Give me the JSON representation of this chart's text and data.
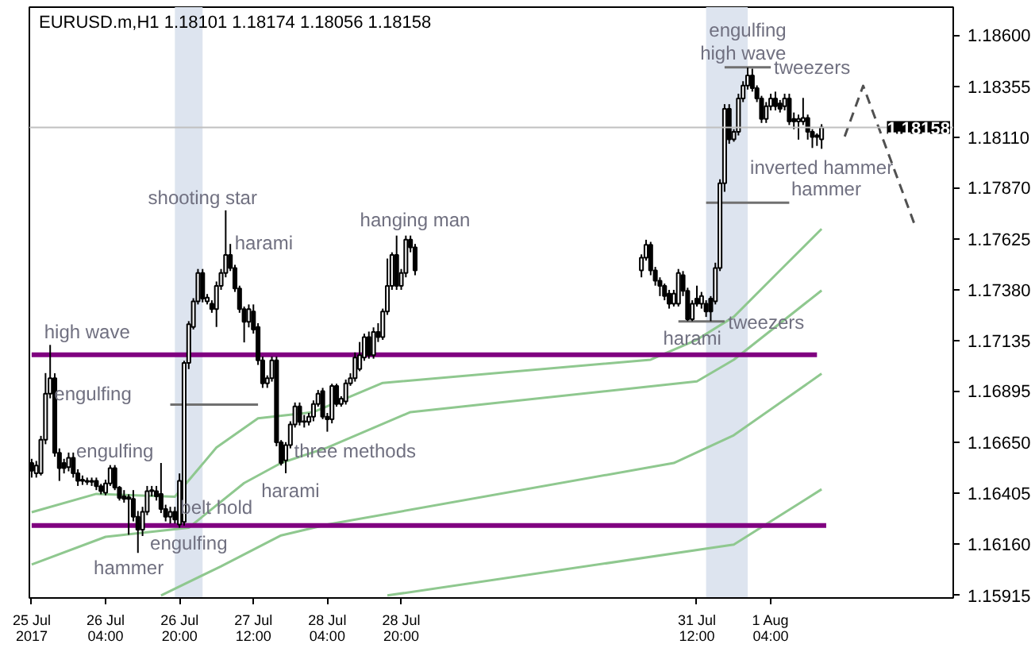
{
  "chart_data": {
    "type": "candlestick",
    "title": "EURUSD.m,H1  1.18101 1.18174 1.18056 1.18158",
    "xlim": [
      "2017-07-25T11:30",
      "2017-08-02T19:30"
    ],
    "ylim": [
      1.15903,
      1.18735
    ],
    "xticks": [
      {
        "value": "2017-07-25T12:00",
        "label": "25 Jul 2017"
      },
      {
        "value": "2017-07-26T04:00",
        "label": "26 Jul 04:00"
      },
      {
        "value": "2017-07-26T20:00",
        "label": "26 Jul 20:00"
      },
      {
        "value": "2017-07-27T12:00",
        "label": "27 Jul 12:00"
      },
      {
        "value": "2017-07-28T04:00",
        "label": "28 Jul 04:00"
      },
      {
        "value": "2017-07-28T20:00",
        "label": "28 Jul 20:00"
      },
      {
        "value": "2017-07-31T12:00",
        "label": "31 Jul 12:00"
      },
      {
        "value": "2017-08-01T04:00",
        "label": "1 Aug 04:00"
      }
    ],
    "yticks": [
      {
        "value": 1.186,
        "label": "1.18600"
      },
      {
        "value": 1.18355,
        "label": "1.18355"
      },
      {
        "value": 1.1811,
        "label": "1.18110"
      },
      {
        "value": 1.1787,
        "label": "1.17870"
      },
      {
        "value": 1.17625,
        "label": "1.17625"
      },
      {
        "value": 1.1738,
        "label": "1.17380"
      },
      {
        "value": 1.17135,
        "label": "1.17135"
      },
      {
        "value": 1.16895,
        "label": "1.16895"
      },
      {
        "value": 1.1665,
        "label": "1.16650"
      },
      {
        "value": 1.16405,
        "label": "1.16405"
      },
      {
        "value": 1.1616,
        "label": "1.16160"
      },
      {
        "value": 1.15915,
        "label": "1.15915"
      }
    ],
    "grid": false,
    "x": [
      "2017-07-25T12:00",
      "2017-07-25T13:00",
      "2017-07-25T14:00",
      "2017-07-25T15:00",
      "2017-07-25T16:00",
      "2017-07-25T17:00",
      "2017-07-25T18:00",
      "2017-07-25T19:00",
      "2017-07-25T20:00",
      "2017-07-25T21:00",
      "2017-07-25T22:00",
      "2017-07-25T23:00",
      "2017-07-26T00:00",
      "2017-07-26T01:00",
      "2017-07-26T02:00",
      "2017-07-26T03:00",
      "2017-07-26T04:00",
      "2017-07-26T05:00",
      "2017-07-26T06:00",
      "2017-07-26T07:00",
      "2017-07-26T08:00",
      "2017-07-26T09:00",
      "2017-07-26T10:00",
      "2017-07-26T11:00",
      "2017-07-26T12:00",
      "2017-07-26T13:00",
      "2017-07-26T14:00",
      "2017-07-26T15:00",
      "2017-07-26T16:00",
      "2017-07-26T17:00",
      "2017-07-26T18:00",
      "2017-07-26T19:00",
      "2017-07-26T20:00",
      "2017-07-26T21:00",
      "2017-07-26T22:00",
      "2017-07-26T23:00",
      "2017-07-27T00:00",
      "2017-07-27T01:00",
      "2017-07-27T02:00",
      "2017-07-27T03:00",
      "2017-07-27T04:00",
      "2017-07-27T05:00",
      "2017-07-27T06:00",
      "2017-07-27T07:00",
      "2017-07-27T08:00",
      "2017-07-27T09:00",
      "2017-07-27T10:00",
      "2017-07-27T11:00",
      "2017-07-27T12:00",
      "2017-07-27T13:00",
      "2017-07-27T14:00",
      "2017-07-27T15:00",
      "2017-07-27T16:00",
      "2017-07-27T17:00",
      "2017-07-27T18:00",
      "2017-07-27T19:00",
      "2017-07-27T20:00",
      "2017-07-27T21:00",
      "2017-07-27T22:00",
      "2017-07-27T23:00",
      "2017-07-28T00:00",
      "2017-07-28T01:00",
      "2017-07-28T02:00",
      "2017-07-28T03:00",
      "2017-07-28T04:00",
      "2017-07-28T05:00",
      "2017-07-28T06:00",
      "2017-07-28T07:00",
      "2017-07-28T08:00",
      "2017-07-28T09:00",
      "2017-07-28T10:00",
      "2017-07-28T11:00",
      "2017-07-28T12:00",
      "2017-07-28T13:00",
      "2017-07-28T14:00",
      "2017-07-28T15:00",
      "2017-07-28T16:00",
      "2017-07-28T17:00",
      "2017-07-28T18:00",
      "2017-07-28T19:00",
      "2017-07-28T20:00",
      "2017-07-28T21:00",
      "2017-07-28T22:00",
      "2017-07-28T23:00",
      "2017-07-31T00:00",
      "2017-07-31T01:00",
      "2017-07-31T02:00",
      "2017-07-31T03:00",
      "2017-07-31T04:00",
      "2017-07-31T05:00",
      "2017-07-31T06:00",
      "2017-07-31T07:00",
      "2017-07-31T08:00",
      "2017-07-31T09:00",
      "2017-07-31T10:00",
      "2017-07-31T11:00",
      "2017-07-31T12:00",
      "2017-07-31T13:00",
      "2017-07-31T14:00",
      "2017-07-31T15:00",
      "2017-07-31T16:00",
      "2017-07-31T17:00",
      "2017-07-31T18:00",
      "2017-07-31T19:00",
      "2017-07-31T20:00",
      "2017-07-31T21:00",
      "2017-07-31T22:00",
      "2017-07-31T23:00",
      "2017-08-01T00:00",
      "2017-08-01T01:00",
      "2017-08-01T02:00",
      "2017-08-01T03:00",
      "2017-08-01T04:00",
      "2017-08-01T05:00",
      "2017-08-01T06:00",
      "2017-08-01T07:00",
      "2017-08-01T08:00",
      "2017-08-01T09:00",
      "2017-08-01T10:00",
      "2017-08-01T11:00",
      "2017-08-01T12:00",
      "2017-08-01T13:00",
      "2017-08-01T14:00",
      "2017-08-01T15:00"
    ],
    "ohlc": [
      [
        1.1655,
        1.1657,
        1.1648,
        1.16513
      ],
      [
        1.16501,
        1.1656,
        1.1648,
        1.16538
      ],
      [
        1.16501,
        1.1668,
        1.1649,
        1.16661
      ],
      [
        1.16661,
        1.16981,
        1.1664,
        1.16882
      ],
      [
        1.16882,
        1.17116,
        1.1686,
        1.16956
      ],
      [
        1.16956,
        1.1698,
        1.1658,
        1.16599
      ],
      [
        1.16599,
        1.1662,
        1.16464,
        1.16525
      ],
      [
        1.1655,
        1.1657,
        1.165,
        1.16525
      ],
      [
        1.1653,
        1.166,
        1.1651,
        1.16575
      ],
      [
        1.16575,
        1.166,
        1.1648,
        1.16501
      ],
      [
        1.16501,
        1.1652,
        1.1644,
        1.16464
      ],
      [
        1.1647,
        1.1649,
        1.16445,
        1.16464
      ],
      [
        1.16464,
        1.1648,
        1.16445,
        1.1646
      ],
      [
        1.1646,
        1.1648,
        1.1644,
        1.16464
      ],
      [
        1.16464,
        1.1648,
        1.1642,
        1.16439
      ],
      [
        1.16439,
        1.1645,
        1.164,
        1.16415
      ],
      [
        1.16407,
        1.1647,
        1.16395,
        1.16452
      ],
      [
        1.16452,
        1.1654,
        1.1644,
        1.16525
      ],
      [
        1.16525,
        1.1654,
        1.1642,
        1.16432
      ],
      [
        1.16432,
        1.1644,
        1.1637,
        1.16383
      ],
      [
        1.1639,
        1.1642,
        1.1636,
        1.16378
      ],
      [
        1.16385,
        1.164,
        1.16206,
        1.16378
      ],
      [
        1.16378,
        1.1642,
        1.1627,
        1.16292
      ],
      [
        1.16292,
        1.1632,
        1.16119,
        1.1623
      ],
      [
        1.1623,
        1.1634,
        1.162,
        1.16316
      ],
      [
        1.16316,
        1.1644,
        1.163,
        1.16415
      ],
      [
        1.16415,
        1.1644,
        1.1639,
        1.1642
      ],
      [
        1.16415,
        1.1644,
        1.1637,
        1.1639
      ],
      [
        1.16402,
        1.1655,
        1.1631,
        1.16329
      ],
      [
        1.16329,
        1.1635,
        1.1627,
        1.16292
      ],
      [
        1.16292,
        1.1634,
        1.1626,
        1.16316
      ],
      [
        1.16316,
        1.1634,
        1.1626,
        1.16279
      ],
      [
        1.16255,
        1.165,
        1.1624,
        1.16464
      ],
      [
        1.16267,
        1.1704,
        1.1625,
        1.1703
      ],
      [
        1.1703,
        1.1723,
        1.17,
        1.17215
      ],
      [
        1.17202,
        1.1734,
        1.1719,
        1.17325
      ],
      [
        1.17325,
        1.1748,
        1.1731,
        1.17461
      ],
      [
        1.17461,
        1.1748,
        1.1732,
        1.17338
      ],
      [
        1.17325,
        1.1736,
        1.1731,
        1.17343
      ],
      [
        1.17313,
        1.1733,
        1.1727,
        1.17288
      ],
      [
        1.17288,
        1.1742,
        1.17202,
        1.17399
      ],
      [
        1.17399,
        1.1748,
        1.1738,
        1.17461
      ],
      [
        1.17461,
        1.17761,
        1.1744,
        1.17547
      ],
      [
        1.17547,
        1.176,
        1.1747,
        1.17485
      ],
      [
        1.17485,
        1.175,
        1.1737,
        1.17387
      ],
      [
        1.17387,
        1.174,
        1.1727,
        1.17288
      ],
      [
        1.17288,
        1.173,
        1.17128,
        1.17227
      ],
      [
        1.17227,
        1.1731,
        1.172,
        1.17288
      ],
      [
        1.17276,
        1.1731,
        1.1717,
        1.1719
      ],
      [
        1.17202,
        1.1722,
        1.1702,
        1.17042
      ],
      [
        1.17042,
        1.1706,
        1.1691,
        1.16932
      ],
      [
        1.16932,
        1.1697,
        1.1691,
        1.16956
      ],
      [
        1.16956,
        1.1706,
        1.1694,
        1.17042
      ],
      [
        1.17042,
        1.1706,
        1.1663,
        1.16649
      ],
      [
        1.16649,
        1.1666,
        1.16538,
        1.1655
      ],
      [
        1.16562,
        1.1665,
        1.16501,
        1.16636
      ],
      [
        1.16636,
        1.1675,
        1.1662,
        1.16735
      ],
      [
        1.16735,
        1.1684,
        1.1672,
        1.16821
      ],
      [
        1.16821,
        1.1684,
        1.1673,
        1.16747
      ],
      [
        1.16747,
        1.1678,
        1.1672,
        1.1675
      ],
      [
        1.16747,
        1.1679,
        1.1673,
        1.16772
      ],
      [
        1.16772,
        1.1685,
        1.1675,
        1.16833
      ],
      [
        1.16833,
        1.169,
        1.1682,
        1.16882
      ],
      [
        1.16895,
        1.1691,
        1.1676,
        1.16772
      ],
      [
        1.16772,
        1.1679,
        1.167,
        1.16759
      ],
      [
        1.16759,
        1.1693,
        1.1674,
        1.16919
      ],
      [
        1.16919,
        1.1693,
        1.1682,
        1.16833
      ],
      [
        1.16833,
        1.1687,
        1.1682,
        1.16858
      ],
      [
        1.16845,
        1.1695,
        1.1683,
        1.16932
      ],
      [
        1.16932,
        1.1698,
        1.1692,
        1.16956
      ],
      [
        1.16956,
        1.1708,
        1.1694,
        1.17055
      ],
      [
        1.17,
        1.1713,
        1.1699,
        1.17067
      ],
      [
        1.17055,
        1.1717,
        1.1704,
        1.17153
      ],
      [
        1.17153,
        1.1718,
        1.1705,
        1.17067
      ],
      [
        1.17067,
        1.172,
        1.1705,
        1.17178
      ],
      [
        1.17178,
        1.1722,
        1.1713,
        1.17153
      ],
      [
        1.17153,
        1.1729,
        1.1714,
        1.17276
      ],
      [
        1.17276,
        1.1753,
        1.1726,
        1.17399
      ],
      [
        1.17399,
        1.1756,
        1.1738,
        1.17547
      ],
      [
        1.17547,
        1.1764,
        1.1738,
        1.17399
      ],
      [
        1.17399,
        1.1748,
        1.1738,
        1.17461
      ],
      [
        1.17461,
        1.1764,
        1.1744,
        1.17621
      ],
      [
        1.17621,
        1.1764,
        1.1756,
        1.17584
      ],
      [
        1.17584,
        1.176,
        1.1745,
        1.17473
      ],
      [
        1.17473,
        1.1755,
        1.1744,
        1.17534
      ],
      [
        1.17534,
        1.1762,
        1.1752,
        1.17596
      ],
      [
        1.17596,
        1.1761,
        1.1745,
        1.17473
      ],
      [
        1.17473,
        1.1749,
        1.174,
        1.17424
      ],
      [
        1.17424,
        1.1744,
        1.1735,
        1.17399
      ],
      [
        1.17399,
        1.1741,
        1.1733,
        1.1735
      ],
      [
        1.17362,
        1.1738,
        1.1729,
        1.17313
      ],
      [
        1.17313,
        1.1738,
        1.173,
        1.17362
      ],
      [
        1.17313,
        1.1748,
        1.173,
        1.17461
      ],
      [
        1.1745,
        1.1747,
        1.1735,
        1.17375
      ],
      [
        1.17375,
        1.1739,
        1.1723,
        1.17239
      ],
      [
        1.17239,
        1.1733,
        1.1723,
        1.17313
      ],
      [
        1.17338,
        1.174,
        1.173,
        1.17313
      ],
      [
        1.17313,
        1.1737,
        1.1729,
        1.1735
      ],
      [
        1.17313,
        1.1733,
        1.1725,
        1.17276
      ],
      [
        1.17338,
        1.1735,
        1.1723,
        1.17276
      ],
      [
        1.17325,
        1.1751,
        1.1731,
        1.17485
      ],
      [
        1.17485,
        1.1791,
        1.1747,
        1.17891
      ],
      [
        1.17891,
        1.1827,
        1.1785,
        1.18248
      ],
      [
        1.18248,
        1.1827,
        1.1808,
        1.18101
      ],
      [
        1.18101,
        1.1815,
        1.1809,
        1.18137
      ],
      [
        1.18137,
        1.1832,
        1.1812,
        1.18297
      ],
      [
        1.18297,
        1.1838,
        1.1828,
        1.18359
      ],
      [
        1.18359,
        1.18445,
        1.1834,
        1.18408
      ],
      [
        1.18408,
        1.1844,
        1.1833,
        1.18347
      ],
      [
        1.18347,
        1.1836,
        1.1828,
        1.18297
      ],
      [
        1.18297,
        1.1831,
        1.1818,
        1.18199
      ],
      [
        1.18199,
        1.1828,
        1.1818,
        1.1826
      ],
      [
        1.1826,
        1.1832,
        1.1824,
        1.18297
      ],
      [
        1.18297,
        1.1833,
        1.1824,
        1.1826
      ],
      [
        1.18273,
        1.1829,
        1.1823,
        1.18248
      ],
      [
        1.1826,
        1.1832,
        1.1824,
        1.18297
      ],
      [
        1.18297,
        1.1832,
        1.1817,
        1.18187
      ],
      [
        1.18199,
        1.1823,
        1.1815,
        1.18187
      ],
      [
        1.18187,
        1.1822,
        1.181,
        1.18199
      ],
      [
        1.18187,
        1.183,
        1.1817,
        1.18204
      ],
      [
        1.18204,
        1.1822,
        1.181,
        1.18137
      ],
      [
        1.18137,
        1.1815,
        1.1806,
        1.18113
      ],
      [
        1.18113,
        1.1813,
        1.1807,
        1.1812
      ],
      [
        1.18101,
        1.18174,
        1.18056,
        1.18158
      ]
    ],
    "series": [
      {
        "type": "line",
        "color": "#8fc88f",
        "x": [
          "2017-07-25T12:00",
          "2017-07-26T02:00",
          "2017-07-26T19:00",
          "2017-07-27T04:00",
          "2017-07-27T13:00",
          "2017-07-28T01:00",
          "2017-07-28T16:00",
          "2017-07-31T02:00",
          "2017-07-31T12:00",
          "2017-07-31T20:00",
          "2017-08-01T06:00",
          "2017-08-01T15:00"
        ],
        "values": [
          1.16314,
          1.16402,
          1.16388,
          1.16624,
          1.16764,
          1.16794,
          1.16934,
          1.17045,
          1.17141,
          1.17251,
          1.17473,
          1.17672
        ]
      },
      {
        "type": "line",
        "color": "#8fc88f",
        "x": [
          "2017-07-25T12:00",
          "2017-07-26T04:00",
          "2017-07-26T22:00",
          "2017-07-27T10:00",
          "2017-07-27T18:00",
          "2017-07-28T04:00",
          "2017-07-28T22:00",
          "2017-07-31T12:00",
          "2017-07-31T20:00",
          "2017-08-01T15:00"
        ],
        "values": [
          1.16063,
          1.16196,
          1.1624,
          1.16454,
          1.1655,
          1.16624,
          1.16794,
          1.16941,
          1.17045,
          1.17377
        ]
      },
      {
        "type": "line",
        "color": "#8fc88f",
        "x": [
          "2017-07-26T16:00",
          "2017-07-27T05:00",
          "2017-07-27T18:00",
          "2017-07-28T04:00",
          "2017-07-31T07:00",
          "2017-07-31T20:00",
          "2017-08-01T15:00"
        ],
        "values": [
          1.15915,
          1.16055,
          1.16203,
          1.16255,
          1.1655,
          1.16683,
          1.16978
        ]
      },
      {
        "type": "line",
        "color": "#8fc88f",
        "x": [
          "2017-07-28T17:00",
          "2017-07-31T20:00",
          "2017-08-01T15:00"
        ],
        "values": [
          1.15915,
          1.16159,
          1.16424
        ]
      },
      {
        "type": "line",
        "color": "#800080",
        "x": [
          "2017-07-25T12:00",
          "2017-08-01T14:00"
        ],
        "values": [
          1.17069,
          1.17069
        ]
      },
      {
        "type": "line",
        "color": "#800080",
        "x": [
          "2017-07-25T12:00",
          "2017-08-01T16:00"
        ],
        "values": [
          1.1625,
          1.1625
        ]
      },
      {
        "type": "line",
        "color": "#707070",
        "x": [
          "2017-07-26T18:00",
          "2017-07-27T13:00"
        ],
        "values": [
          1.1683,
          1.1683
        ]
      },
      {
        "type": "line",
        "color": "#707070",
        "x": [
          "2017-07-31T14:00",
          "2017-08-01T08:00"
        ],
        "values": [
          1.17798,
          1.17798
        ]
      },
      {
        "type": "line",
        "color": "#707070",
        "x": [
          "2017-07-31T08:00",
          "2017-07-31T18:00"
        ],
        "values": [
          1.17229,
          1.17229
        ]
      },
      {
        "type": "line",
        "color": "#707070",
        "x": [
          "2017-07-31T18:00",
          "2017-08-01T04:00"
        ],
        "values": [
          1.18447,
          1.18447
        ]
      },
      {
        "type": "line",
        "color": "#505050",
        "line_style": "dashed",
        "x": [
          "2017-08-01T20:00",
          "2017-08-02T00:00",
          "2017-08-02T11:00"
        ],
        "values": [
          1.18115,
          1.18358,
          1.17701
        ]
      }
    ],
    "ref_lines": [
      {
        "axis": "y",
        "value": 1.18158,
        "label": "1.18158",
        "color": "#c0c0c0"
      }
    ],
    "bands": [
      {
        "axis": "x",
        "from": "2017-07-26T19:00",
        "to": "2017-07-27T01:00",
        "color": "#dde4ef"
      },
      {
        "axis": "x",
        "from": "2017-07-31T14:00",
        "to": "2017-07-31T23:00",
        "color": "#dde4ef"
      }
    ],
    "annotations": [
      "high wave",
      "engulfing",
      "engulfing",
      "hammer",
      "belt hold",
      "engulfing",
      "shooting star",
      "harami",
      "harami",
      "three methods",
      "hanging man",
      "harami",
      "tweezers",
      "engulfing",
      "high wave",
      {
        "text": "tweezers",
        "x": "2017-08-01T04:00",
        "y": 1.18447
      },
      "inverted hammer",
      "hammer"
    ]
  }
}
